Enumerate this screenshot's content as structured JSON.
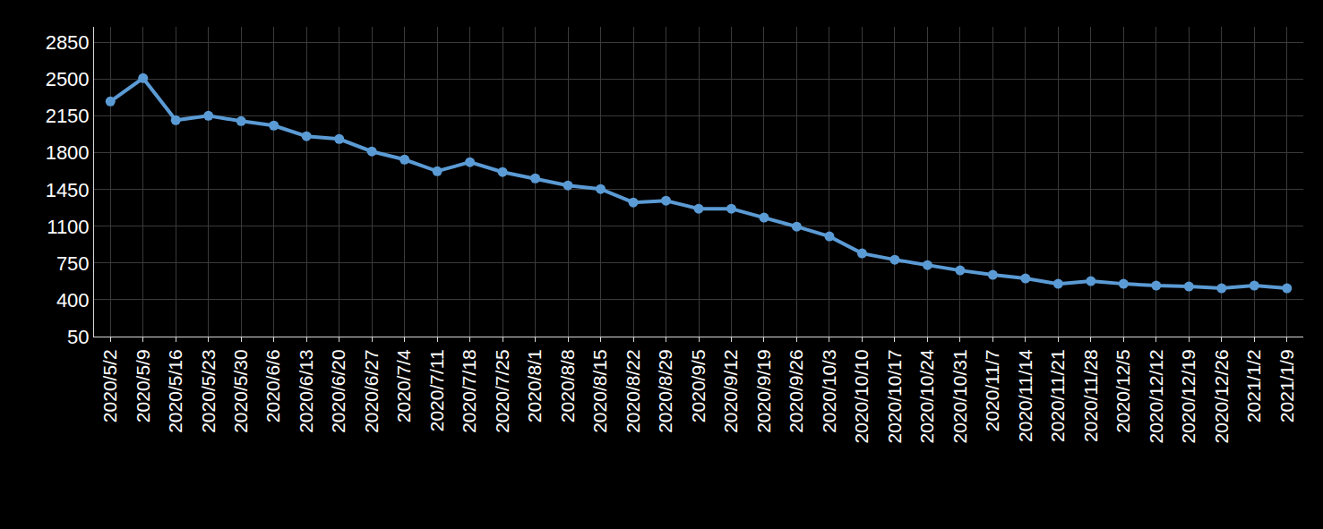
{
  "chart_data": {
    "type": "line",
    "categories": [
      "2020/5/2",
      "2020/5/9",
      "2020/5/16",
      "2020/5/23",
      "2020/5/30",
      "2020/6/6",
      "2020/6/13",
      "2020/6/20",
      "2020/6/27",
      "2020/7/4",
      "2020/7/11",
      "2020/7/18",
      "2020/7/25",
      "2020/8/1",
      "2020/8/8",
      "2020/8/15",
      "2020/8/22",
      "2020/8/29",
      "2020/9/5",
      "2020/9/12",
      "2020/9/19",
      "2020/9/26",
      "2020/10/3",
      "2020/10/10",
      "2020/10/17",
      "2020/10/24",
      "2020/10/31",
      "2020/11/7",
      "2020/11/14",
      "2020/11/21",
      "2020/11/28",
      "2020/12/5",
      "2020/12/12",
      "2020/12/19",
      "2020/12/26",
      "2021/1/2",
      "2021/1/9"
    ],
    "values": [
      2290,
      2511,
      2111,
      2153,
      2102,
      2060,
      1958,
      1932,
      1813,
      1736,
      1625,
      1711,
      1617,
      1557,
      1489,
      1455,
      1327,
      1344,
      1268,
      1268,
      1183,
      1097,
      1004,
      842,
      782,
      731,
      680,
      638,
      604,
      552,
      578,
      552,
      535,
      527,
      510,
      535,
      510
    ],
    "color": "#5b9bd5",
    "marker": "circle",
    "ylim": [
      50,
      3000
    ],
    "yticks": [
      50,
      400,
      750,
      1100,
      1450,
      1800,
      2150,
      2500,
      2850
    ],
    "grid": true
  }
}
